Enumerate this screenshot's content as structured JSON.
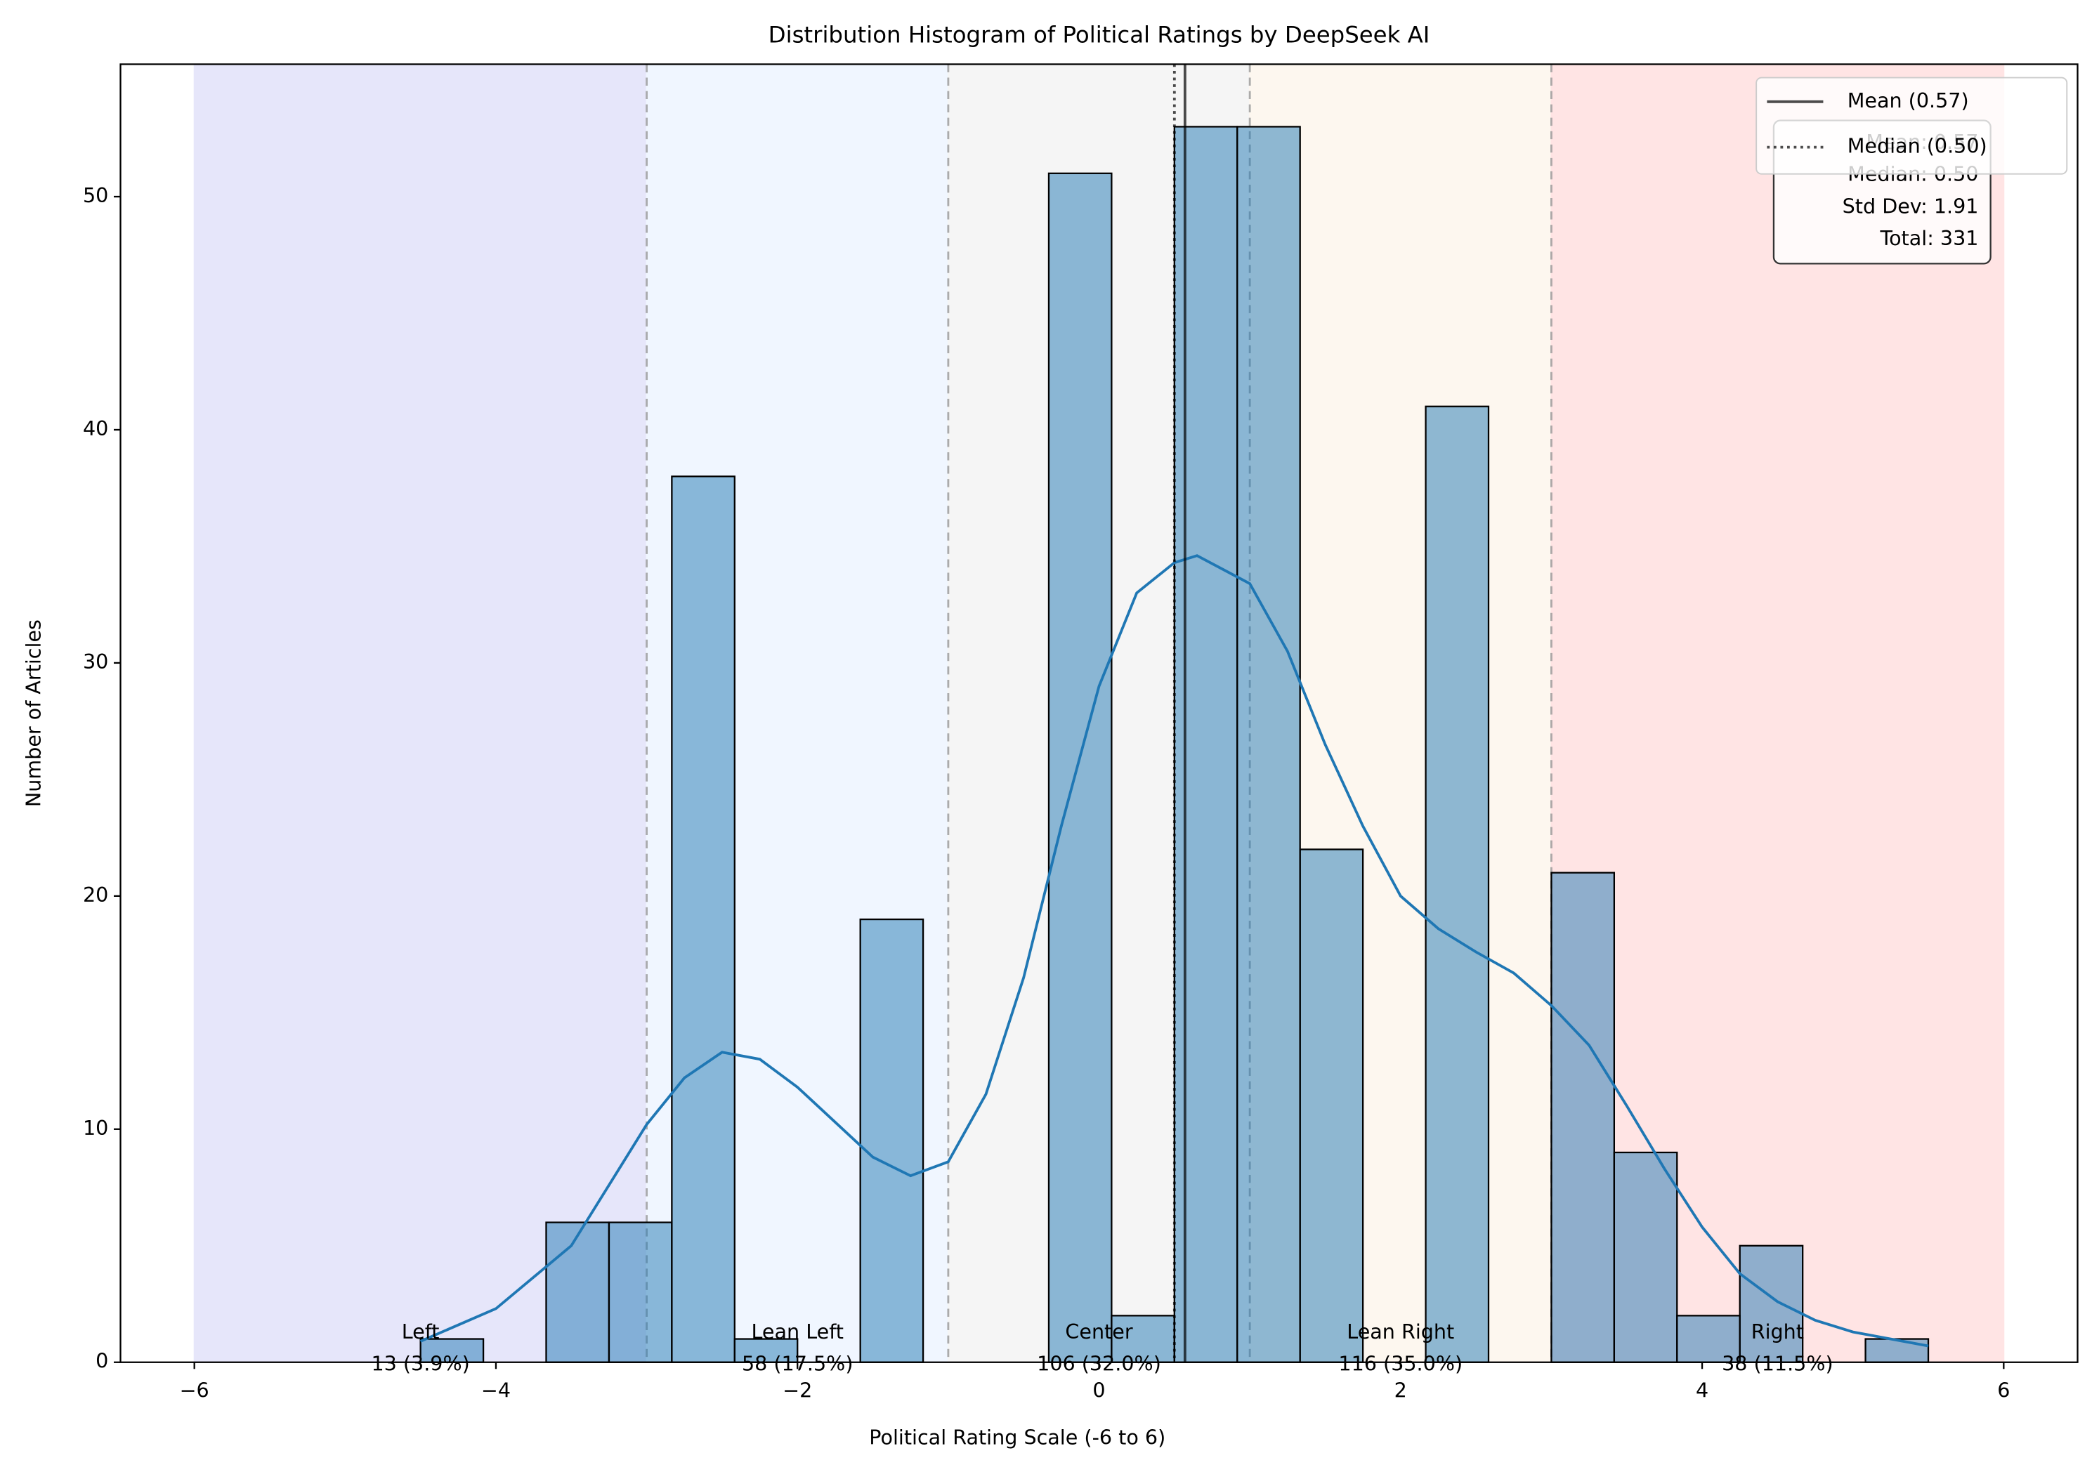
{
  "chart_data": {
    "type": "histogram",
    "title": "Distribution Histogram of Political Ratings by DeepSeek AI",
    "xlabel": "Political Rating Scale (-6 to 6)",
    "ylabel": "Number of Articles",
    "bins": [
      -4.5,
      -4.0833,
      -3.6667,
      -3.25,
      -2.8333,
      -2.4167,
      -2.0,
      -1.5833,
      -1.1667,
      -0.75,
      -0.3333,
      0.0833,
      0.5,
      0.9167,
      1.3333,
      1.75,
      2.1667,
      2.5833,
      3.0,
      3.4167,
      3.8333,
      4.25,
      4.6667,
      5.0833,
      5.5
    ],
    "counts": [
      1,
      0,
      6,
      6,
      38,
      1,
      0,
      19,
      0,
      0,
      51,
      2,
      53,
      53,
      22,
      0,
      41,
      0,
      21,
      9,
      2,
      5,
      0,
      1
    ],
    "color": "#1f77b4",
    "opacity": 0.5,
    "kde": {
      "color": "#1f77b4",
      "x": [
        -4.5,
        -4,
        -3.5,
        -3,
        -2.75,
        -2.5,
        -2.25,
        -2,
        -1.5,
        -1.25,
        -1,
        -0.75,
        -0.5,
        -0.25,
        0,
        0.25,
        0.5,
        0.65,
        1,
        1.25,
        1.5,
        1.75,
        2,
        2.25,
        2.5,
        2.75,
        3,
        3.25,
        3.5,
        3.75,
        4,
        4.25,
        4.5,
        4.75,
        5,
        5.5
      ],
      "y": [
        0.9,
        2.3,
        5.0,
        10.2,
        12.2,
        13.3,
        13.0,
        11.8,
        8.8,
        8.0,
        8.6,
        11.5,
        16.5,
        23.0,
        29.0,
        33.0,
        34.3,
        34.6,
        33.4,
        30.5,
        26.5,
        23.0,
        20.0,
        18.6,
        17.6,
        16.7,
        15.3,
        13.6,
        11.0,
        8.3,
        5.8,
        3.8,
        2.6,
        1.8,
        1.3,
        0.7
      ]
    },
    "regions": [
      {
        "name": "Left",
        "range": [
          -6,
          -3
        ],
        "color": "#e6e6fa",
        "label": "13 (3.9%)"
      },
      {
        "name": "Lean Left",
        "range": [
          -3,
          -1
        ],
        "color": "#f0f6ff",
        "label": "58 (17.5%)"
      },
      {
        "name": "Center",
        "range": [
          -1,
          1
        ],
        "color": "#f5f5f5",
        "label": "106 (32.0%)"
      },
      {
        "name": "Lean Right",
        "range": [
          1,
          3
        ],
        "color": "#fdf7ef",
        "label": "116 (35.0%)"
      },
      {
        "name": "Right",
        "range": [
          3,
          6
        ],
        "color": "#ffe4e4",
        "label": "38 (11.5%)"
      }
    ],
    "mean": {
      "value": 0.57,
      "label": "Mean (0.57)"
    },
    "median": {
      "value": 0.5,
      "label": "Median (0.50)"
    },
    "stats": [
      "Mean: 0.57",
      "Median: 0.50",
      "Std Dev: 1.91",
      "Total: 331"
    ],
    "legend": "upper right",
    "xlim": [
      -6.49,
      6.49
    ],
    "ylim": [
      0,
      55.68
    ],
    "xticks": [
      {
        "value": -6,
        "label": "−6"
      },
      {
        "value": -4,
        "label": "−4"
      },
      {
        "value": -2,
        "label": "−2"
      },
      0,
      2,
      4,
      6
    ],
    "yticks": [
      0,
      10,
      20,
      30,
      40,
      50
    ]
  }
}
